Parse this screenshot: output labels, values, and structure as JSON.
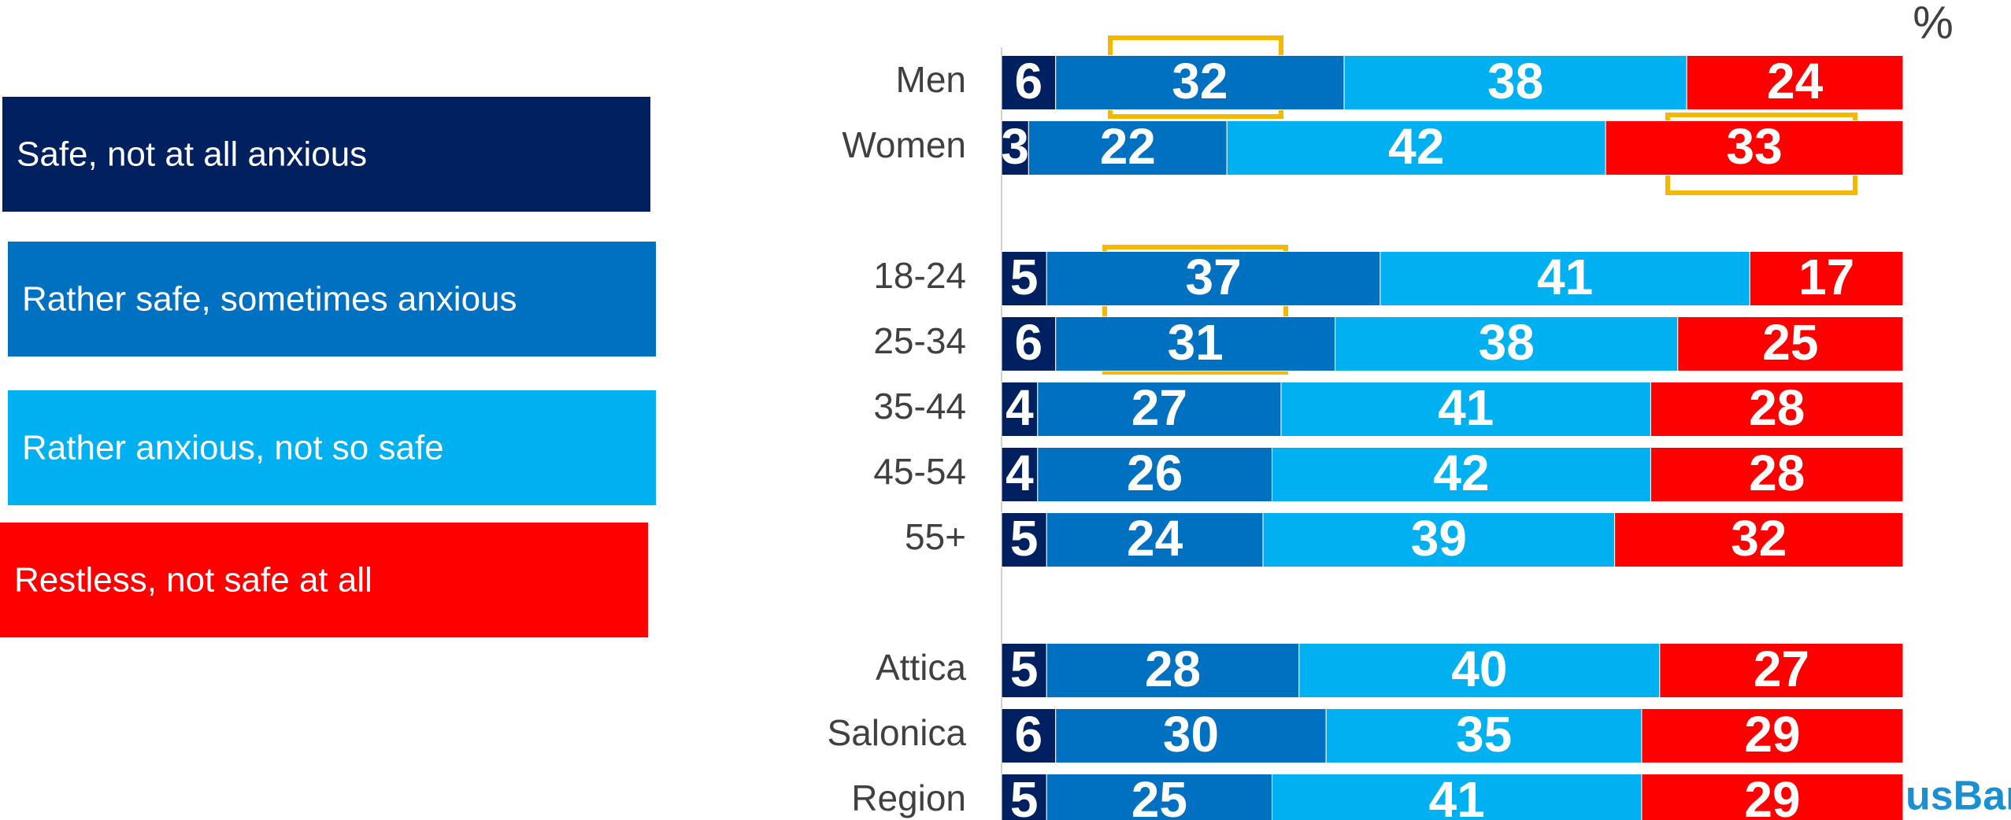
{
  "chart_data": {
    "type": "stacked-bar-horizontal",
    "unit_label": "%",
    "categories": [
      "Men",
      "Women",
      null,
      "18-24",
      "25-34",
      "35-44",
      "45-54",
      "55+",
      null,
      "Attica",
      "Salonica",
      "Region"
    ],
    "series": [
      {
        "name": "Safe, not at all anxious",
        "color": "#002060",
        "values": [
          6,
          3,
          null,
          5,
          6,
          4,
          4,
          5,
          null,
          5,
          6,
          5
        ]
      },
      {
        "name": "Rather safe, sometimes anxious",
        "color": "#0070c0",
        "values": [
          32,
          22,
          null,
          37,
          31,
          27,
          26,
          24,
          null,
          28,
          30,
          25
        ]
      },
      {
        "name": "Rather anxious, not so safe",
        "color": "#00b0f0",
        "values": [
          38,
          42,
          null,
          41,
          38,
          41,
          42,
          39,
          null,
          40,
          35,
          41
        ]
      },
      {
        "name": "Restless, not safe at all",
        "color": "#ff0000",
        "values": [
          24,
          33,
          null,
          17,
          25,
          28,
          28,
          32,
          null,
          27,
          29,
          29
        ]
      }
    ],
    "xlim": [
      0,
      100
    ]
  },
  "logo": "usBari"
}
